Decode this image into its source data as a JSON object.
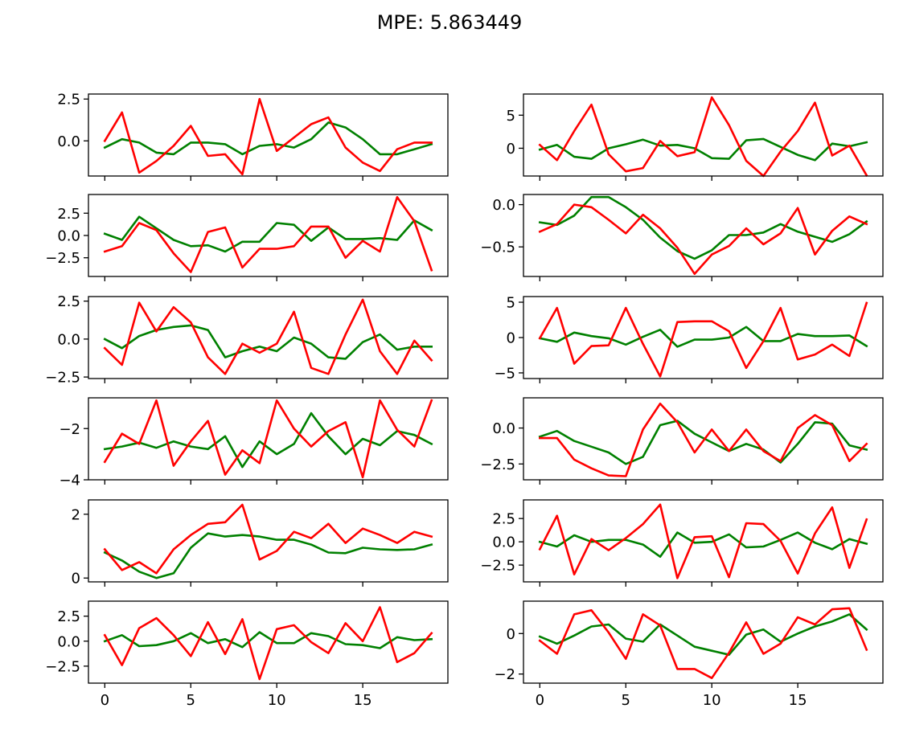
{
  "title": "MPE: 5.863449",
  "colors": {
    "series_a": "#008000",
    "series_b": "#ff0000"
  },
  "chart_data": [
    {
      "type": "line",
      "grid": false,
      "xlim": [
        -0.95,
        19.95
      ],
      "ylim": [
        -2.1,
        2.8
      ],
      "xticks": [
        0,
        5,
        10,
        15
      ],
      "xtick_labels": [
        "",
        "",
        "",
        ""
      ],
      "yticks": [
        0,
        2.5
      ],
      "ytick_labels": [
        "0.0",
        "2.5"
      ],
      "x": [
        0,
        1,
        2,
        3,
        4,
        5,
        6,
        7,
        8,
        9,
        10,
        11,
        12,
        13,
        14,
        15,
        16,
        17,
        18,
        19
      ],
      "series": [
        {
          "color": "#008000",
          "values": [
            -0.4,
            0.1,
            -0.1,
            -0.7,
            -0.8,
            -0.1,
            -0.1,
            -0.2,
            -0.8,
            -0.3,
            -0.2,
            -0.4,
            0.1,
            1.1,
            0.8,
            0.1,
            -0.8,
            -0.8,
            -0.5,
            -0.2
          ]
        },
        {
          "color": "#ff0000",
          "values": [
            0.0,
            1.7,
            -1.9,
            -1.2,
            -0.3,
            0.9,
            -0.9,
            -0.8,
            -2.0,
            2.5,
            -0.6,
            0.2,
            1.0,
            1.4,
            -0.4,
            -1.3,
            -1.8,
            -0.5,
            -0.1,
            -0.1
          ]
        }
      ]
    },
    {
      "type": "line",
      "grid": false,
      "xlim": [
        -0.95,
        19.95
      ],
      "ylim": [
        -4.2,
        8.2
      ],
      "xticks": [
        0,
        5,
        10,
        15
      ],
      "xtick_labels": [
        "",
        "",
        "",
        ""
      ],
      "yticks": [
        0,
        5
      ],
      "ytick_labels": [
        "0",
        "5"
      ],
      "x": [
        0,
        1,
        2,
        3,
        4,
        5,
        6,
        7,
        8,
        9,
        10,
        11,
        12,
        13,
        14,
        15,
        16,
        17,
        18,
        19
      ],
      "series": [
        {
          "color": "#008000",
          "values": [
            -0.2,
            0.5,
            -1.3,
            -1.6,
            0.0,
            0.6,
            1.3,
            0.4,
            0.5,
            0.0,
            -1.5,
            -1.6,
            1.2,
            1.4,
            0.2,
            -1.0,
            -1.8,
            0.7,
            0.3,
            0.9
          ]
        },
        {
          "color": "#ff0000",
          "values": [
            0.5,
            -1.8,
            2.6,
            6.6,
            -0.9,
            -3.5,
            -3.0,
            1.1,
            -1.2,
            -0.6,
            7.7,
            3.5,
            -1.9,
            -4.2,
            -0.5,
            2.6,
            6.9,
            -1.1,
            0.4,
            -4.1
          ]
        }
      ]
    },
    {
      "type": "line",
      "grid": false,
      "xlim": [
        -0.95,
        19.95
      ],
      "ylim": [
        -4.6,
        4.6
      ],
      "xticks": [
        0,
        5,
        10,
        15
      ],
      "xtick_labels": [
        "",
        "",
        "",
        ""
      ],
      "yticks": [
        -2.5,
        0,
        2.5
      ],
      "ytick_labels": [
        "−2.5",
        "0.0",
        "2.5"
      ],
      "x": [
        0,
        1,
        2,
        3,
        4,
        5,
        6,
        7,
        8,
        9,
        10,
        11,
        12,
        13,
        14,
        15,
        16,
        17,
        18,
        19
      ],
      "series": [
        {
          "color": "#008000",
          "values": [
            0.2,
            -0.5,
            2.1,
            0.8,
            -0.5,
            -1.2,
            -1.1,
            -1.8,
            -0.7,
            -0.7,
            1.4,
            1.2,
            -0.6,
            0.9,
            -0.4,
            -0.4,
            -0.3,
            -0.5,
            1.7,
            0.6
          ]
        },
        {
          "color": "#ff0000",
          "values": [
            -1.8,
            -1.2,
            1.4,
            0.6,
            -2.0,
            -4.1,
            0.4,
            0.9,
            -3.6,
            -1.5,
            -1.5,
            -1.2,
            1.0,
            1.0,
            -2.5,
            -0.6,
            -1.8,
            4.3,
            1.6,
            -3.9
          ]
        }
      ]
    },
    {
      "type": "line",
      "grid": false,
      "xlim": [
        -0.95,
        19.95
      ],
      "ylim": [
        -0.85,
        0.12
      ],
      "xticks": [
        0,
        5,
        10,
        15
      ],
      "xtick_labels": [
        "",
        "",
        "",
        ""
      ],
      "yticks": [
        -0.5,
        0
      ],
      "ytick_labels": [
        "−0.5",
        "0.0"
      ],
      "x": [
        0,
        1,
        2,
        3,
        4,
        5,
        6,
        7,
        8,
        9,
        10,
        11,
        12,
        13,
        14,
        15,
        16,
        17,
        18,
        19
      ],
      "series": [
        {
          "color": "#008000",
          "values": [
            -0.21,
            -0.24,
            -0.13,
            0.09,
            0.09,
            -0.03,
            -0.18,
            -0.39,
            -0.55,
            -0.64,
            -0.54,
            -0.36,
            -0.36,
            -0.33,
            -0.23,
            -0.32,
            -0.38,
            -0.44,
            -0.35,
            -0.2
          ]
        },
        {
          "color": "#ff0000",
          "values": [
            -0.32,
            -0.23,
            0.0,
            -0.03,
            -0.18,
            -0.34,
            -0.12,
            -0.28,
            -0.51,
            -0.82,
            -0.59,
            -0.49,
            -0.28,
            -0.47,
            -0.34,
            -0.04,
            -0.59,
            -0.31,
            -0.14,
            -0.23
          ]
        }
      ]
    },
    {
      "type": "line",
      "grid": false,
      "xlim": [
        -0.95,
        19.95
      ],
      "ylim": [
        -2.6,
        2.8
      ],
      "xticks": [
        0,
        5,
        10,
        15
      ],
      "xtick_labels": [
        "",
        "",
        "",
        ""
      ],
      "yticks": [
        -2.5,
        0,
        2.5
      ],
      "ytick_labels": [
        "−2.5",
        "0.0",
        "2.5"
      ],
      "x": [
        0,
        1,
        2,
        3,
        4,
        5,
        6,
        7,
        8,
        9,
        10,
        11,
        12,
        13,
        14,
        15,
        16,
        17,
        18,
        19
      ],
      "series": [
        {
          "color": "#008000",
          "values": [
            0.0,
            -0.6,
            0.2,
            0.6,
            0.8,
            0.9,
            0.6,
            -1.2,
            -0.8,
            -0.5,
            -0.8,
            0.1,
            -0.3,
            -1.2,
            -1.3,
            -0.2,
            0.3,
            -0.7,
            -0.5,
            -0.5
          ]
        },
        {
          "color": "#ff0000",
          "values": [
            -0.6,
            -1.7,
            2.4,
            0.5,
            2.1,
            1.1,
            -1.2,
            -2.3,
            -0.3,
            -0.9,
            -0.3,
            1.8,
            -1.9,
            -2.3,
            0.3,
            2.6,
            -0.8,
            -2.3,
            -0.1,
            -1.4
          ]
        }
      ]
    },
    {
      "type": "line",
      "grid": false,
      "xlim": [
        -0.95,
        19.95
      ],
      "ylim": [
        -5.8,
        5.8
      ],
      "xticks": [
        0,
        5,
        10,
        15
      ],
      "xtick_labels": [
        "",
        "",
        "",
        ""
      ],
      "yticks": [
        -5,
        0,
        5
      ],
      "ytick_labels": [
        "−5",
        "0",
        "5"
      ],
      "x": [
        0,
        1,
        2,
        3,
        4,
        5,
        6,
        7,
        8,
        9,
        10,
        11,
        12,
        13,
        14,
        15,
        16,
        17,
        18,
        19
      ],
      "series": [
        {
          "color": "#008000",
          "values": [
            -0.1,
            -0.6,
            0.7,
            0.2,
            -0.1,
            -1.0,
            0.1,
            1.1,
            -1.3,
            -0.3,
            -0.3,
            0.0,
            1.5,
            -0.5,
            -0.5,
            0.5,
            0.2,
            0.2,
            0.3,
            -1.2
          ]
        },
        {
          "color": "#ff0000",
          "values": [
            -0.1,
            4.2,
            -3.7,
            -1.2,
            -1.1,
            4.2,
            -0.9,
            -5.5,
            2.2,
            2.3,
            2.3,
            0.9,
            -4.3,
            -0.5,
            4.2,
            -3.1,
            -2.4,
            -1.0,
            -2.6,
            4.9
          ]
        }
      ]
    },
    {
      "type": "line",
      "grid": false,
      "xlim": [
        -0.95,
        19.95
      ],
      "ylim": [
        -4.0,
        -0.8
      ],
      "xticks": [
        0,
        5,
        10,
        15
      ],
      "xtick_labels": [
        "",
        "",
        "",
        ""
      ],
      "yticks": [
        -4,
        -2
      ],
      "ytick_labels": [
        "−4",
        "−2"
      ],
      "x": [
        0,
        1,
        2,
        3,
        4,
        5,
        6,
        7,
        8,
        9,
        10,
        11,
        12,
        13,
        14,
        15,
        16,
        17,
        18,
        19
      ],
      "series": [
        {
          "color": "#008000",
          "values": [
            -2.8,
            -2.7,
            -2.55,
            -2.75,
            -2.5,
            -2.7,
            -2.8,
            -2.3,
            -3.5,
            -2.5,
            -3.0,
            -2.6,
            -1.4,
            -2.3,
            -3.0,
            -2.4,
            -2.65,
            -2.1,
            -2.25,
            -2.6
          ]
        },
        {
          "color": "#ff0000",
          "values": [
            -3.3,
            -2.2,
            -2.6,
            -0.9,
            -3.45,
            -2.5,
            -1.7,
            -3.8,
            -2.85,
            -3.35,
            -0.9,
            -2.0,
            -2.7,
            -2.1,
            -1.75,
            -3.9,
            -0.9,
            -2.05,
            -2.7,
            -0.9
          ]
        }
      ]
    },
    {
      "type": "line",
      "grid": false,
      "xlim": [
        -0.95,
        19.95
      ],
      "ylim": [
        -3.6,
        2.1
      ],
      "xticks": [
        0,
        5,
        10,
        15
      ],
      "xtick_labels": [
        "",
        "",
        "",
        ""
      ],
      "yticks": [
        -2.5,
        0
      ],
      "ytick_labels": [
        "−2.5",
        "0.0"
      ],
      "x": [
        0,
        1,
        2,
        3,
        4,
        5,
        6,
        7,
        8,
        9,
        10,
        11,
        12,
        13,
        14,
        15,
        16,
        17,
        18,
        19
      ],
      "series": [
        {
          "color": "#008000",
          "values": [
            -0.6,
            -0.2,
            -0.9,
            -1.3,
            -1.7,
            -2.5,
            -2.0,
            0.2,
            0.5,
            -0.4,
            -1.0,
            -1.6,
            -1.1,
            -1.5,
            -2.4,
            -1.1,
            0.4,
            0.3,
            -1.2,
            -1.5
          ]
        },
        {
          "color": "#ff0000",
          "values": [
            -0.7,
            -0.7,
            -2.2,
            -2.8,
            -3.3,
            -3.35,
            -0.1,
            1.7,
            0.4,
            -1.7,
            -0.1,
            -1.6,
            -0.1,
            -1.6,
            -2.3,
            0.0,
            0.9,
            0.2,
            -2.3,
            -1.1
          ]
        }
      ]
    },
    {
      "type": "line",
      "grid": false,
      "xlim": [
        -0.95,
        19.95
      ],
      "ylim": [
        -0.12,
        2.45
      ],
      "xticks": [
        0,
        5,
        10,
        15
      ],
      "xtick_labels": [
        "",
        "",
        "",
        ""
      ],
      "yticks": [
        0,
        2
      ],
      "ytick_labels": [
        "0",
        "2"
      ],
      "x": [
        0,
        1,
        2,
        3,
        4,
        5,
        6,
        7,
        8,
        9,
        10,
        11,
        12,
        13,
        14,
        15,
        16,
        17,
        18,
        19
      ],
      "series": [
        {
          "color": "#008000",
          "values": [
            0.8,
            0.55,
            0.2,
            0.0,
            0.15,
            0.95,
            1.4,
            1.3,
            1.35,
            1.3,
            1.2,
            1.2,
            1.05,
            0.8,
            0.78,
            0.95,
            0.9,
            0.88,
            0.9,
            1.05
          ]
        },
        {
          "color": "#ff0000",
          "values": [
            0.9,
            0.25,
            0.5,
            0.15,
            0.9,
            1.35,
            1.7,
            1.75,
            2.3,
            0.58,
            0.85,
            1.45,
            1.25,
            1.7,
            1.1,
            1.55,
            1.35,
            1.1,
            1.45,
            1.3
          ]
        }
      ]
    },
    {
      "type": "line",
      "grid": false,
      "xlim": [
        -0.95,
        19.95
      ],
      "ylim": [
        -4.3,
        4.5
      ],
      "xticks": [
        0,
        5,
        10,
        15
      ],
      "xtick_labels": [
        "",
        "",
        "",
        ""
      ],
      "yticks": [
        -2.5,
        0,
        2.5
      ],
      "ytick_labels": [
        "−2.5",
        "0.0",
        "2.5"
      ],
      "x": [
        0,
        1,
        2,
        3,
        4,
        5,
        6,
        7,
        8,
        9,
        10,
        11,
        12,
        13,
        14,
        15,
        16,
        17,
        18,
        19
      ],
      "series": [
        {
          "color": "#008000",
          "values": [
            0.0,
            -0.5,
            0.7,
            0.0,
            0.2,
            0.2,
            -0.3,
            -1.6,
            1.0,
            -0.1,
            0.0,
            0.8,
            -0.6,
            -0.5,
            0.2,
            1.0,
            -0.1,
            -0.8,
            0.3,
            -0.2
          ]
        },
        {
          "color": "#ff0000",
          "values": [
            -0.8,
            2.8,
            -3.5,
            0.3,
            -0.9,
            0.4,
            1.9,
            4.0,
            -3.9,
            0.5,
            0.6,
            -3.8,
            2.0,
            1.9,
            0.1,
            -3.4,
            0.9,
            3.7,
            -2.8,
            2.4
          ]
        }
      ]
    },
    {
      "type": "line",
      "grid": false,
      "xlim": [
        -0.95,
        19.95
      ],
      "ylim": [
        -4.2,
        4.0
      ],
      "xticks": [
        0,
        5,
        10,
        15
      ],
      "xtick_labels": [
        "0",
        "5",
        "10",
        "15"
      ],
      "yticks": [
        -2.5,
        0,
        2.5
      ],
      "ytick_labels": [
        "−2.5",
        "0.0",
        "2.5"
      ],
      "x": [
        0,
        1,
        2,
        3,
        4,
        5,
        6,
        7,
        8,
        9,
        10,
        11,
        12,
        13,
        14,
        15,
        16,
        17,
        18,
        19
      ],
      "series": [
        {
          "color": "#008000",
          "values": [
            0.0,
            0.6,
            -0.5,
            -0.4,
            0.0,
            0.8,
            -0.2,
            0.2,
            -0.6,
            0.9,
            -0.2,
            -0.2,
            0.8,
            0.5,
            -0.3,
            -0.4,
            -0.7,
            0.4,
            0.1,
            0.2
          ]
        },
        {
          "color": "#ff0000",
          "values": [
            0.6,
            -2.4,
            1.3,
            2.3,
            0.6,
            -1.5,
            1.9,
            -1.3,
            2.2,
            -3.8,
            1.2,
            1.6,
            -0.1,
            -1.2,
            1.8,
            0.0,
            3.4,
            -2.1,
            -1.2,
            0.8
          ]
        }
      ]
    },
    {
      "type": "line",
      "grid": false,
      "xlim": [
        -0.95,
        19.95
      ],
      "ylim": [
        -2.45,
        1.6
      ],
      "xticks": [
        0,
        5,
        10,
        15
      ],
      "xtick_labels": [
        "0",
        "5",
        "10",
        "15"
      ],
      "yticks": [
        -2,
        0
      ],
      "ytick_labels": [
        "−2",
        "0"
      ],
      "x": [
        0,
        1,
        2,
        3,
        4,
        5,
        6,
        7,
        8,
        9,
        10,
        11,
        12,
        13,
        14,
        15,
        16,
        17,
        18,
        19
      ],
      "series": [
        {
          "color": "#008000",
          "values": [
            -0.15,
            -0.5,
            -0.1,
            0.35,
            0.45,
            -0.25,
            -0.4,
            0.45,
            -0.1,
            -0.65,
            -0.85,
            -1.05,
            -0.05,
            0.2,
            -0.4,
            0.0,
            0.35,
            0.6,
            0.95,
            0.2
          ]
        },
        {
          "color": "#ff0000",
          "values": [
            -0.35,
            -1.0,
            0.95,
            1.15,
            0.05,
            -1.25,
            0.95,
            0.4,
            -1.75,
            -1.75,
            -2.2,
            -0.95,
            0.55,
            -1.0,
            -0.5,
            0.8,
            0.45,
            1.2,
            1.25,
            -0.8
          ]
        }
      ]
    }
  ]
}
